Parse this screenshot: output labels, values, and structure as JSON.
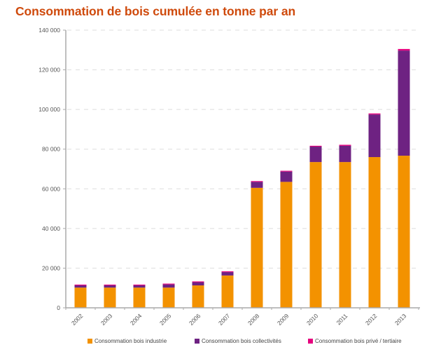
{
  "chart_data": {
    "type": "bar",
    "stacked": true,
    "title": "Consommation de bois cumulée en tonne par an",
    "xlabel": "",
    "ylabel": "",
    "ylim": [
      0,
      140000
    ],
    "yticks": [
      0,
      20000,
      40000,
      60000,
      80000,
      100000,
      120000,
      140000
    ],
    "ytick_labels": [
      "0",
      "20 000",
      "40 000",
      "60 000",
      "80 000",
      "100 000",
      "120 000",
      "140 000"
    ],
    "grid": true,
    "legend_position": "bottom",
    "categories": [
      "2002",
      "2003",
      "2004",
      "2005",
      "2006",
      "2007",
      "2008",
      "2009",
      "2010",
      "2011",
      "2012",
      "2013"
    ],
    "series": [
      {
        "name": "Consommation bois industrie",
        "color": "#f39200",
        "values": [
          10200,
          10200,
          10200,
          10200,
          11300,
          16300,
          60500,
          63500,
          73500,
          73500,
          76000,
          76700
        ]
      },
      {
        "name": "Consommation bois collectivités",
        "color": "#6e2282",
        "values": [
          1100,
          1100,
          1100,
          1600,
          1600,
          1700,
          3000,
          5200,
          7800,
          8200,
          21500,
          53000
        ]
      },
      {
        "name": "Consommation bois privé / tertiaire",
        "color": "#e5007e",
        "values": [
          400,
          400,
          400,
          400,
          400,
          400,
          400,
          400,
          400,
          500,
          500,
          800
        ]
      }
    ]
  }
}
